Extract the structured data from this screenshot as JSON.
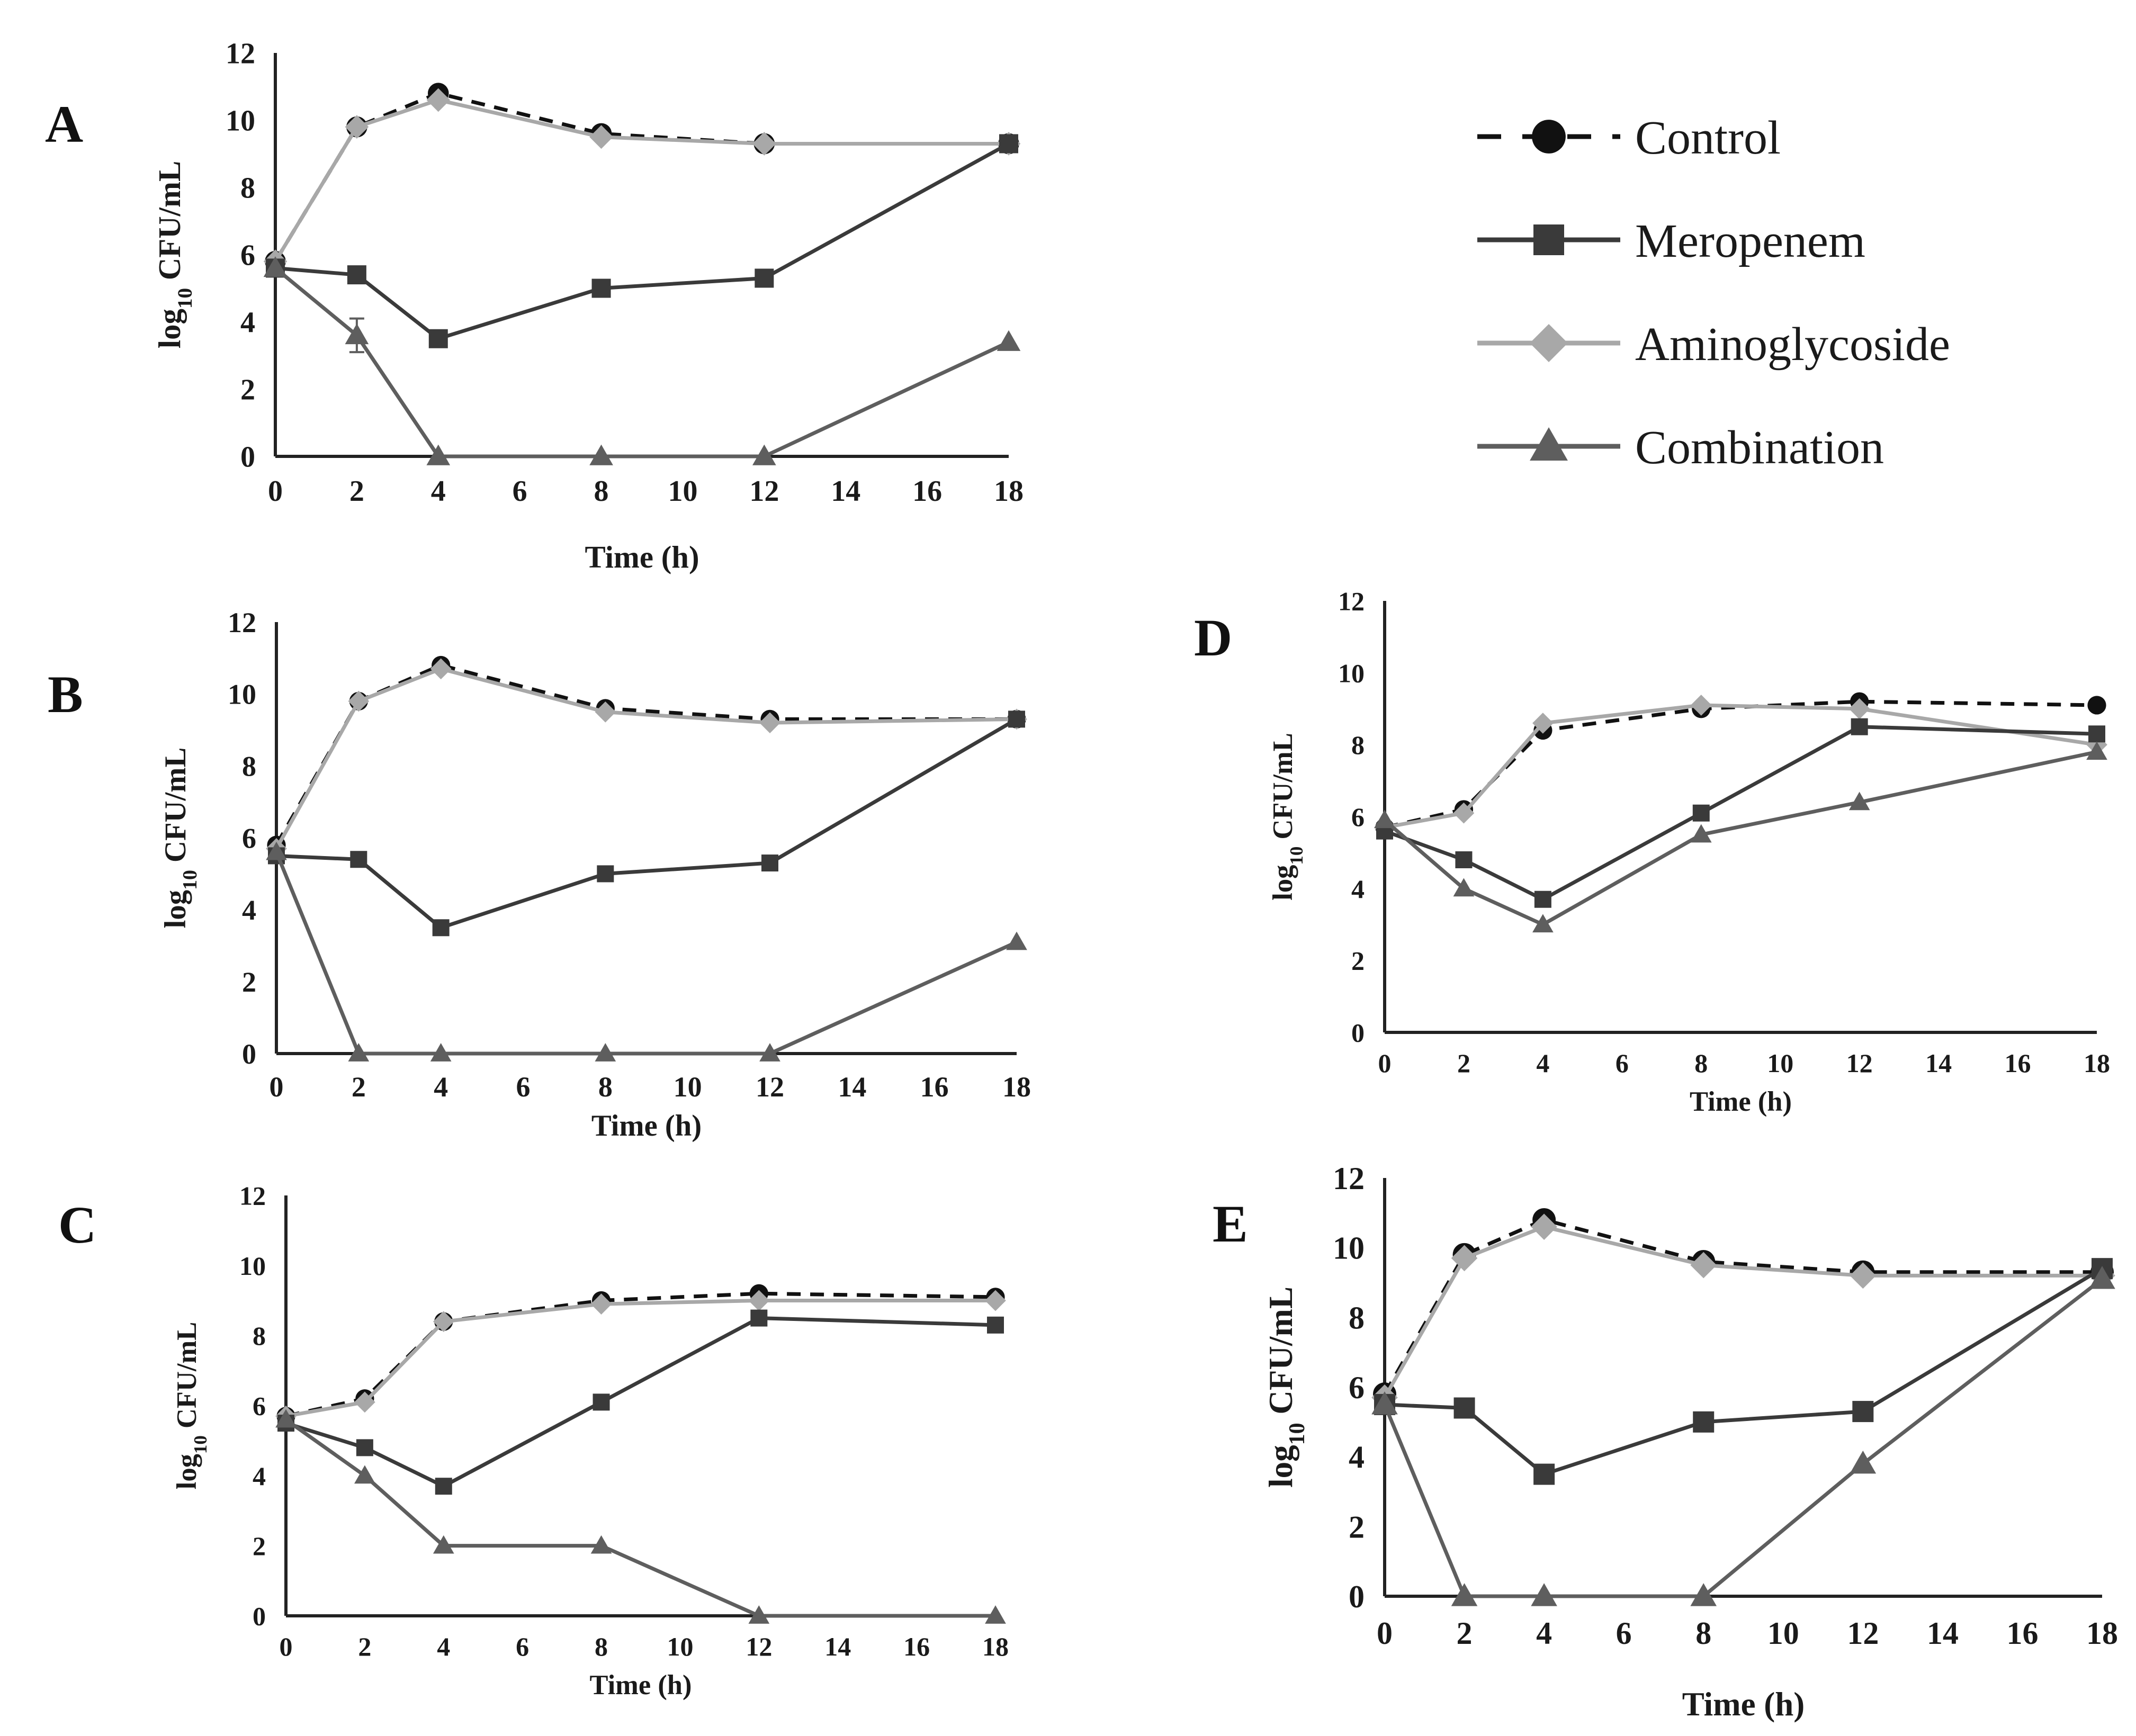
{
  "colors": {
    "control": "#111111",
    "meropenem": "#3a3a3a",
    "aminoglycoside": "#a8a8a8",
    "combination": "#5e5e5e",
    "axis": "#222222"
  },
  "legend": {
    "items": [
      {
        "key": "control",
        "label": "Control",
        "marker": "circle",
        "dashed": true
      },
      {
        "key": "meropenem",
        "label": "Meropenem",
        "marker": "square",
        "dashed": false
      },
      {
        "key": "aminoglycoside",
        "label": "Aminoglycoside",
        "marker": "diamond",
        "dashed": false
      },
      {
        "key": "combination",
        "label": "Combination",
        "marker": "triangle",
        "dashed": false
      }
    ]
  },
  "chart_data": [
    {
      "panel": "A",
      "type": "line",
      "xlabel": "Time (h)",
      "ylabel_main": "log",
      "ylabel_sub": "10",
      "ylabel_rest": " CFU/mL",
      "xlim": [
        0,
        18
      ],
      "ylim": [
        0,
        12
      ],
      "xticks": [
        0,
        2,
        4,
        6,
        8,
        10,
        12,
        14,
        16,
        18
      ],
      "yticks": [
        0,
        2,
        4,
        6,
        8,
        10,
        12
      ],
      "x": [
        0,
        2,
        4,
        8,
        12,
        18
      ],
      "series": [
        {
          "key": "control",
          "name": "Control",
          "values": [
            5.8,
            9.8,
            10.8,
            9.6,
            9.3,
            9.3
          ]
        },
        {
          "key": "aminoglycoside",
          "name": "Aminoglycoside",
          "values": [
            5.8,
            9.8,
            10.6,
            9.5,
            9.3,
            9.3
          ]
        },
        {
          "key": "meropenem",
          "name": "Meropenem",
          "values": [
            5.6,
            5.4,
            3.5,
            5.0,
            5.3,
            9.3
          ]
        },
        {
          "key": "combination",
          "name": "Combination",
          "values": [
            5.6,
            3.6,
            0,
            0,
            0,
            3.4
          ],
          "error": [
            0,
            0.5,
            0,
            0,
            0,
            0
          ]
        }
      ]
    },
    {
      "panel": "B",
      "type": "line",
      "xlabel": "Time (h)",
      "ylabel_main": "log",
      "ylabel_sub": "10",
      "ylabel_rest": " CFU/mL",
      "xlim": [
        0,
        18
      ],
      "ylim": [
        0,
        12
      ],
      "xticks": [
        0,
        2,
        4,
        6,
        8,
        10,
        12,
        14,
        16,
        18
      ],
      "yticks": [
        0,
        2,
        4,
        6,
        8,
        10,
        12
      ],
      "x": [
        0,
        2,
        4,
        8,
        12,
        18
      ],
      "series": [
        {
          "key": "control",
          "name": "Control",
          "values": [
            5.8,
            9.8,
            10.8,
            9.6,
            9.3,
            9.3
          ]
        },
        {
          "key": "aminoglycoside",
          "name": "Aminoglycoside",
          "values": [
            5.7,
            9.8,
            10.7,
            9.5,
            9.2,
            9.3
          ]
        },
        {
          "key": "meropenem",
          "name": "Meropenem",
          "values": [
            5.5,
            5.4,
            3.5,
            5.0,
            5.3,
            9.3
          ]
        },
        {
          "key": "combination",
          "name": "Combination",
          "values": [
            5.6,
            0,
            0,
            0,
            0,
            3.1
          ]
        }
      ]
    },
    {
      "panel": "C",
      "type": "line",
      "xlabel": "Time (h)",
      "ylabel_main": "log",
      "ylabel_sub": "10",
      "ylabel_rest": " CFU/mL",
      "xlim": [
        0,
        18
      ],
      "ylim": [
        0,
        12
      ],
      "xticks": [
        0,
        2,
        4,
        6,
        8,
        10,
        12,
        14,
        16,
        18
      ],
      "yticks": [
        0,
        2,
        4,
        6,
        8,
        10,
        12
      ],
      "x": [
        0,
        2,
        4,
        8,
        12,
        18
      ],
      "series": [
        {
          "key": "control",
          "name": "Control",
          "values": [
            5.7,
            6.2,
            8.4,
            9.0,
            9.2,
            9.1
          ]
        },
        {
          "key": "aminoglycoside",
          "name": "Aminoglycoside",
          "values": [
            5.7,
            6.1,
            8.4,
            8.9,
            9.0,
            9.0
          ]
        },
        {
          "key": "meropenem",
          "name": "Meropenem",
          "values": [
            5.5,
            4.8,
            3.7,
            6.1,
            8.5,
            8.3
          ]
        },
        {
          "key": "combination",
          "name": "Combination",
          "values": [
            5.6,
            4.0,
            2.0,
            2.0,
            0,
            0
          ]
        }
      ]
    },
    {
      "panel": "D",
      "type": "line",
      "xlabel": "Time (h)",
      "ylabel_main": "log",
      "ylabel_sub": "10",
      "ylabel_rest": " CFU/mL",
      "xlim": [
        0,
        18
      ],
      "ylim": [
        0,
        12
      ],
      "xticks": [
        0,
        2,
        4,
        6,
        8,
        10,
        12,
        14,
        16,
        18
      ],
      "yticks": [
        0,
        2,
        4,
        6,
        8,
        10,
        12
      ],
      "x": [
        0,
        2,
        4,
        8,
        12,
        18
      ],
      "series": [
        {
          "key": "control",
          "name": "Control",
          "values": [
            5.7,
            6.2,
            8.4,
            9.0,
            9.2,
            9.1
          ]
        },
        {
          "key": "aminoglycoside",
          "name": "Aminoglycoside",
          "values": [
            5.7,
            6.1,
            8.6,
            9.1,
            9.0,
            8.0
          ]
        },
        {
          "key": "meropenem",
          "name": "Meropenem",
          "values": [
            5.6,
            4.8,
            3.7,
            6.1,
            8.5,
            8.3
          ]
        },
        {
          "key": "combination",
          "name": "Combination",
          "values": [
            5.9,
            4.0,
            3.0,
            5.5,
            6.4,
            7.8
          ]
        }
      ]
    },
    {
      "panel": "E",
      "type": "line",
      "xlabel": "Time (h)",
      "ylabel_main": "log",
      "ylabel_sub": "10",
      "ylabel_rest": " CFU/mL",
      "xlim": [
        0,
        18
      ],
      "ylim": [
        0,
        12
      ],
      "xticks": [
        0,
        2,
        4,
        6,
        8,
        10,
        12,
        14,
        16,
        18
      ],
      "yticks": [
        0,
        2,
        4,
        6,
        8,
        10,
        12
      ],
      "x": [
        0,
        2,
        4,
        8,
        12,
        18
      ],
      "series": [
        {
          "key": "control",
          "name": "Control",
          "values": [
            5.8,
            9.8,
            10.8,
            9.6,
            9.3,
            9.3
          ]
        },
        {
          "key": "aminoglycoside",
          "name": "Aminoglycoside",
          "values": [
            5.7,
            9.7,
            10.6,
            9.5,
            9.2,
            9.2
          ]
        },
        {
          "key": "meropenem",
          "name": "Meropenem",
          "values": [
            5.5,
            5.4,
            3.5,
            5.0,
            5.3,
            9.4
          ]
        },
        {
          "key": "combination",
          "name": "Combination",
          "values": [
            5.5,
            0,
            0,
            0,
            3.8,
            9.1
          ]
        }
      ]
    }
  ]
}
